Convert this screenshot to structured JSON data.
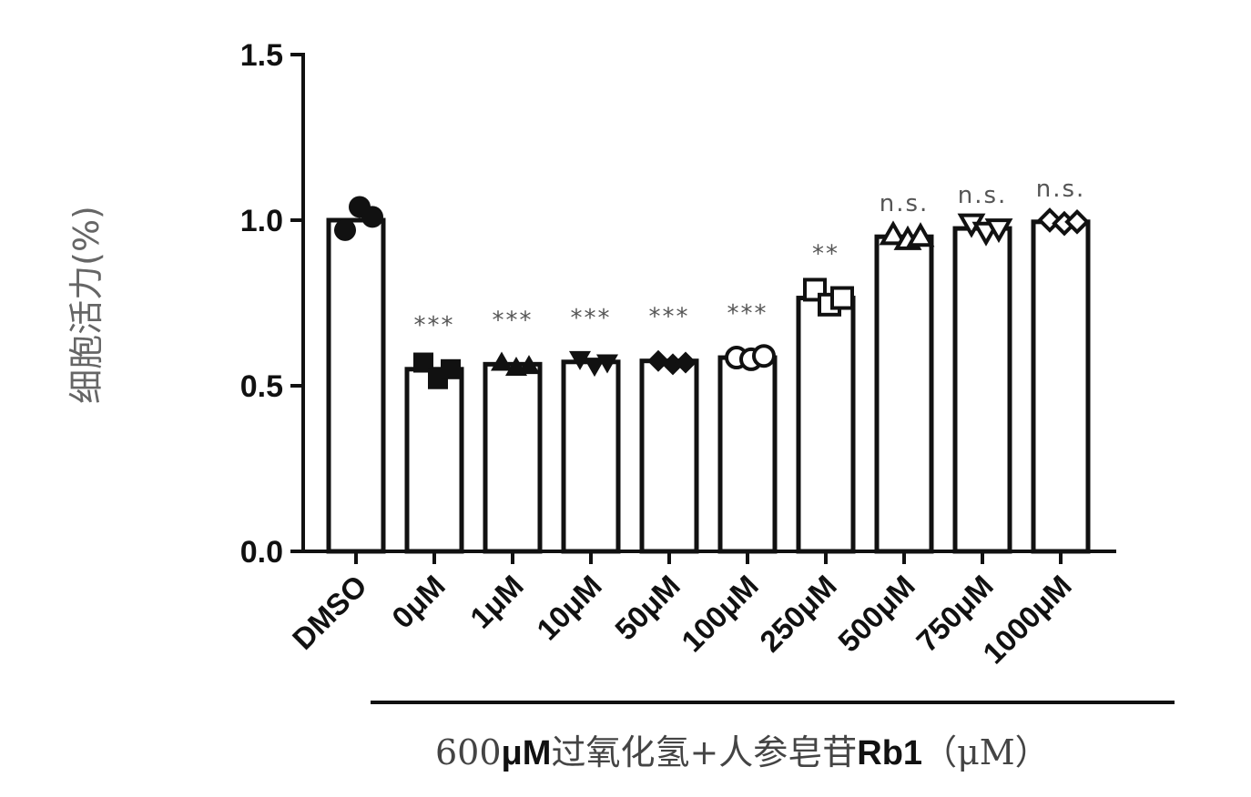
{
  "chart_data": {
    "type": "bar",
    "ylabel": "细胞活力(%)",
    "ylim": [
      0,
      1.5
    ],
    "yticks": [
      "0.0",
      "0.5",
      "1.0",
      "1.5"
    ],
    "categories": [
      "DMSO",
      "0μM",
      "1μM",
      "10μM",
      "50μM",
      "100μM",
      "250μM",
      "500μM",
      "750μM",
      "1000μM"
    ],
    "values": [
      1.0,
      0.55,
      0.565,
      0.572,
      0.575,
      0.585,
      0.765,
      0.95,
      0.975,
      0.995
    ],
    "significance": [
      "",
      "***",
      "***",
      "***",
      "***",
      "***",
      "**",
      "n.s.",
      "n.s.",
      "n.s."
    ],
    "points": [
      [
        0.97,
        1.04,
        1.01
      ],
      [
        0.57,
        0.52,
        0.55
      ],
      [
        0.57,
        0.555,
        0.56
      ],
      [
        0.58,
        0.56,
        0.57
      ],
      [
        0.575,
        0.565,
        0.57
      ],
      [
        0.585,
        0.58,
        0.59
      ],
      [
        0.79,
        0.745,
        0.765
      ],
      [
        0.955,
        0.94,
        0.95
      ],
      [
        0.99,
        0.965,
        0.975
      ],
      [
        1.0,
        0.99,
        0.995
      ]
    ],
    "group_label": {
      "prefix": "600",
      "unit1": "μM",
      "middle": "过氧化氢+人参皂苷",
      "rb": "Rb1",
      "suffix": "（μM）"
    },
    "grid": false,
    "legend": "none"
  }
}
